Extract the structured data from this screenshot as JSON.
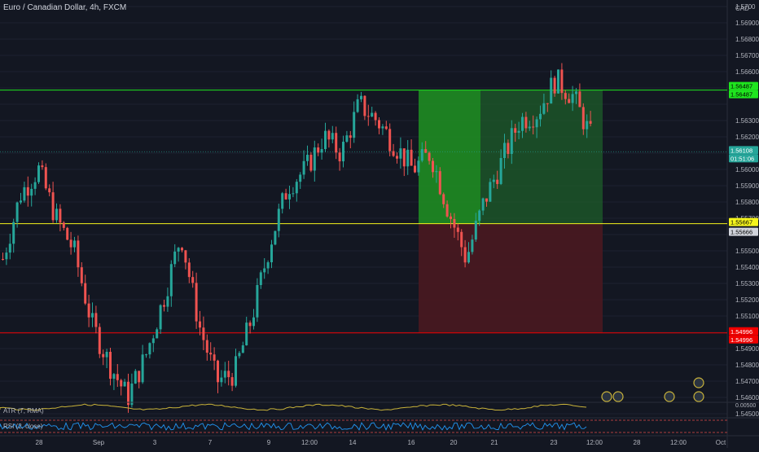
{
  "chart": {
    "title": "Euro / Canadian Dollar, 4h, FXCM",
    "currency": "CAD",
    "price_ticks": [
      "1.5700",
      "1.56900",
      "1.56800",
      "1.56700",
      "1.56600",
      "1.56500",
      "1.56400",
      "1.56300",
      "1.56200",
      "1.56100",
      "1.56000",
      "1.55900",
      "1.55800",
      "1.55700",
      "1.55600",
      "1.55500",
      "1.55400",
      "1.55300",
      "1.55200",
      "1.55100",
      "1.55000",
      "1.54900",
      "1.54800",
      "1.54700",
      "1.54600",
      "1.54500"
    ],
    "price_tick_labels": [
      "1.5700",
      "1.56900",
      "1.56800",
      "1.56700",
      "1.56600",
      "",
      "",
      "1.56300",
      "1.56200",
      "",
      "1.56000",
      "1.55900",
      "1.55800",
      "1.55700",
      "",
      "1.55500",
      "1.55400",
      "1.55300",
      "1.55200",
      "1.55100",
      "",
      "1.54900",
      "1.54800",
      "1.54700",
      "1.54600",
      "1.54500"
    ],
    "time_labels": [
      "28",
      "Sep",
      "3",
      "7",
      "9",
      "12:00",
      "14",
      "16",
      "20",
      "21",
      "23",
      "12:00",
      "28",
      "12:00",
      "Oct"
    ],
    "badges": [
      {
        "label": "1.56487",
        "color": "#1fe51f",
        "text_color": "#000000"
      },
      {
        "label": "1.56487",
        "color": "#1fe51f",
        "text_color": "#000000"
      },
      {
        "label": "1.56108",
        "color": "#26a69a",
        "text_color": "#ffffff"
      },
      {
        "label": "01:51:06",
        "color": "#26a69a",
        "text_color": "#ffffff"
      },
      {
        "label": "1.55667",
        "color": "#f5f51c",
        "text_color": "#000000"
      },
      {
        "label": "1.55666",
        "color": "#d1d4dc",
        "text_color": "#000000"
      },
      {
        "label": "1.54996",
        "color": "#f00000",
        "text_color": "#ffffff"
      },
      {
        "label": "1.54996",
        "color": "#f00000",
        "text_color": "#ffffff"
      }
    ],
    "indicators": {
      "atr_label": "ATR (7, RMA)",
      "rsi_label": "RSI (2, close)",
      "atr_tick": "0.00500"
    },
    "colors": {
      "bg": "#131722",
      "up": "#26a69a",
      "down": "#ef5350",
      "target": "#1fe51f",
      "entry": "#f5f51c",
      "stop": "#f00000",
      "atr": "#c8b23a",
      "rsi": "#2196f3"
    },
    "levels": {
      "target": 1.56487,
      "entry": 1.55667,
      "stop": 1.54996,
      "current": 1.56108
    }
  }
}
